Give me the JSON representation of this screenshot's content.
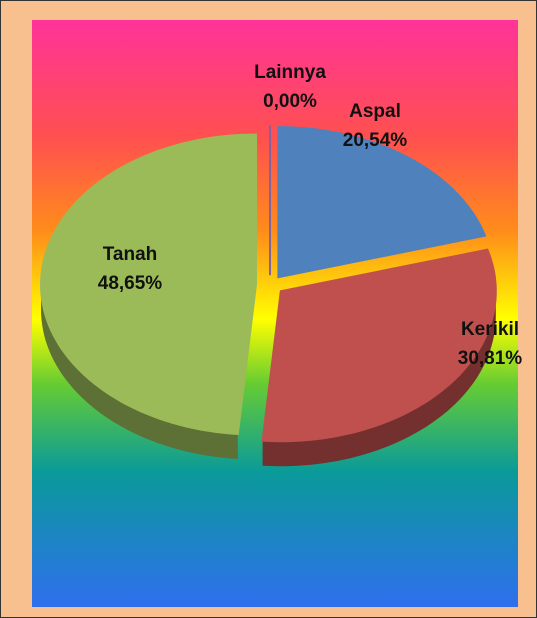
{
  "chart_data": {
    "type": "pie",
    "categories": [
      "Lainnya",
      "Aspal",
      "Kerikil",
      "Tanah"
    ],
    "values": [
      0.0,
      20.54,
      30.81,
      48.65
    ],
    "value_labels": [
      "0,00%",
      "20,54%",
      "30,81%",
      "48,65%"
    ],
    "colors": [
      "#8064a2",
      "#4f81bd",
      "#c0504d",
      "#9bbb59"
    ]
  }
}
